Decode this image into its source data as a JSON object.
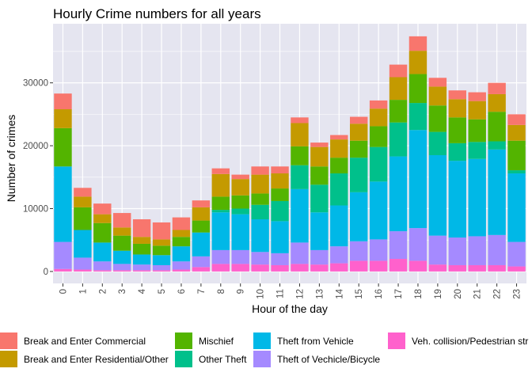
{
  "chart_data": {
    "type": "bar",
    "stacked": true,
    "title": "Hourly Crime numbers for all years",
    "xlabel": "Hour of the day",
    "ylabel": "Number of crimes",
    "ylim": [
      -1900,
      39400
    ],
    "yticks": [
      0,
      10000,
      20000,
      30000
    ],
    "ytick_labels": [
      "0",
      "10000",
      "20000",
      "30000"
    ],
    "grid": true,
    "background": "#E5E5F0",
    "legend_position": "bottom",
    "categories": [
      "0",
      "1",
      "2",
      "3",
      "4",
      "5",
      "6",
      "7",
      "8",
      "9",
      "10",
      "11",
      "12",
      "13",
      "14",
      "15",
      "16",
      "17",
      "18",
      "19",
      "20",
      "21",
      "22",
      "23"
    ],
    "series": [
      {
        "name": "Veh. collision/Pedestrian str",
        "color": "#FF61CC",
        "values": [
          400,
          300,
          200,
          200,
          200,
          200,
          300,
          700,
          1200,
          1200,
          1100,
          1000,
          1200,
          1100,
          1300,
          1700,
          1700,
          2000,
          1700,
          1100,
          1000,
          1000,
          1000,
          800
        ]
      },
      {
        "name": "Theft of Vechicle/Bicycle",
        "color": "#A58AFF",
        "values": [
          4300,
          1900,
          1400,
          1000,
          900,
          800,
          1300,
          1700,
          2200,
          2200,
          2000,
          1900,
          3400,
          2300,
          2700,
          3100,
          3400,
          4400,
          5200,
          4600,
          4400,
          4600,
          4800,
          3900
        ]
      },
      {
        "name": "Theft from Vehicle",
        "color": "#00B8E7",
        "values": [
          12000,
          4400,
          3000,
          2100,
          1600,
          1600,
          2400,
          3800,
          6000,
          5700,
          5200,
          5100,
          8500,
          6000,
          6500,
          7800,
          9200,
          11900,
          15600,
          12800,
          12200,
          12300,
          13600,
          10900
        ]
      },
      {
        "name": "Other Theft",
        "color": "#00C08B",
        "values": [
          0,
          0,
          0,
          0,
          0,
          0,
          0,
          0,
          400,
          900,
          2300,
          3200,
          3800,
          4400,
          5100,
          5500,
          5500,
          5400,
          4300,
          3700,
          2800,
          2700,
          1300,
          500
        ]
      },
      {
        "name": "Mischief",
        "color": "#53B400",
        "values": [
          6100,
          3600,
          3100,
          2400,
          1700,
          1500,
          1500,
          1900,
          2100,
          2100,
          1800,
          2000,
          3000,
          2900,
          2500,
          2700,
          3300,
          3600,
          4600,
          4200,
          4100,
          3600,
          4700,
          4700
        ]
      },
      {
        "name": "Break and Enter Residential/Other",
        "color": "#C49A00",
        "values": [
          3000,
          1700,
          1400,
          1300,
          1100,
          1000,
          1100,
          2100,
          3600,
          2600,
          3000,
          2400,
          3700,
          3100,
          2900,
          2700,
          2800,
          3600,
          3700,
          3000,
          2900,
          2900,
          2800,
          2500
        ]
      },
      {
        "name": "Break and Enter Commercial",
        "color": "#F8766D",
        "values": [
          2500,
          1400,
          1700,
          2300,
          2800,
          2700,
          2000,
          1100,
          900,
          700,
          1300,
          1100,
          900,
          700,
          700,
          1100,
          1300,
          2000,
          2300,
          1400,
          1400,
          1400,
          1800,
          1700
        ]
      }
    ],
    "legend_order": [
      "Break and Enter Commercial",
      "Break and Enter Residential/Other",
      "Mischief",
      "Other Theft",
      "Theft from Vehicle",
      "Theft of Vechicle/Bicycle",
      "Veh. collision/Pedestrian str"
    ]
  }
}
